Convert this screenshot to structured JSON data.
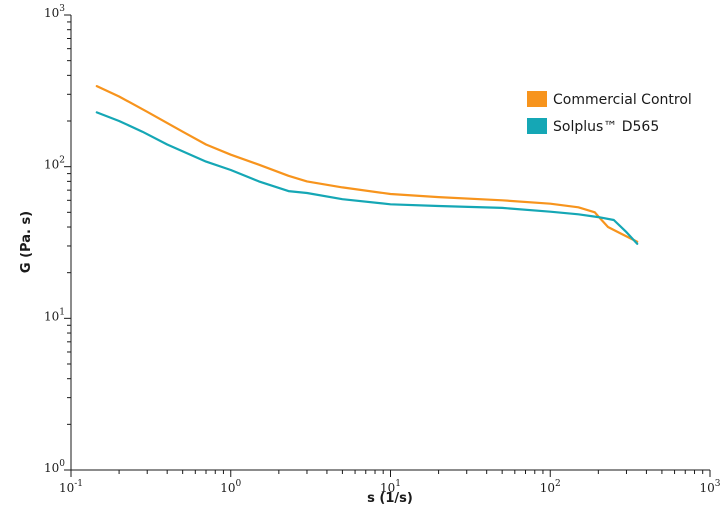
{
  "chart_data": {
    "type": "line",
    "title": "",
    "xlabel": "s (1/s)",
    "ylabel": "G (Pa. s)",
    "xscale": "log",
    "yscale": "log",
    "xlim": [
      0.1,
      1000
    ],
    "ylim": [
      1,
      1000
    ],
    "grid": false,
    "legend_position": "top-right",
    "x_ticks": [
      {
        "value": 0.1,
        "base": "10",
        "exp": "-1"
      },
      {
        "value": 1,
        "base": "10",
        "exp": "0"
      },
      {
        "value": 10,
        "base": "10",
        "exp": "1"
      },
      {
        "value": 100,
        "base": "10",
        "exp": "2"
      },
      {
        "value": 1000,
        "base": "10",
        "exp": "3"
      }
    ],
    "y_ticks": [
      {
        "value": 1,
        "base": "10",
        "exp": "0"
      },
      {
        "value": 10,
        "base": "10",
        "exp": "1"
      },
      {
        "value": 100,
        "base": "10",
        "exp": "2"
      },
      {
        "value": 1000,
        "base": "10",
        "exp": "3"
      }
    ],
    "series": [
      {
        "name": "Commercial Control",
        "color": "#f7941d",
        "x": [
          0.145,
          0.2,
          0.3,
          0.5,
          0.7,
          1.0,
          1.5,
          2.3,
          3.0,
          5.0,
          10,
          20,
          50,
          100,
          150,
          190,
          200,
          230,
          280,
          350
        ],
        "y": [
          340,
          290,
          230,
          170,
          140,
          120,
          103,
          87,
          80,
          73,
          66,
          63,
          60,
          57,
          54,
          50,
          47,
          40,
          36,
          32
        ]
      },
      {
        "name": "Solplus™ D565",
        "color": "#15a7b5",
        "x": [
          0.145,
          0.2,
          0.28,
          0.4,
          0.7,
          1.0,
          1.5,
          2.3,
          3.0,
          5.0,
          10,
          20,
          50,
          100,
          150,
          200,
          250,
          300,
          350
        ],
        "y": [
          228,
          200,
          170,
          140,
          108,
          95,
          80,
          69,
          67,
          61,
          56.5,
          55,
          53.5,
          50.5,
          48.5,
          46.5,
          44.5,
          37,
          31
        ]
      }
    ]
  }
}
